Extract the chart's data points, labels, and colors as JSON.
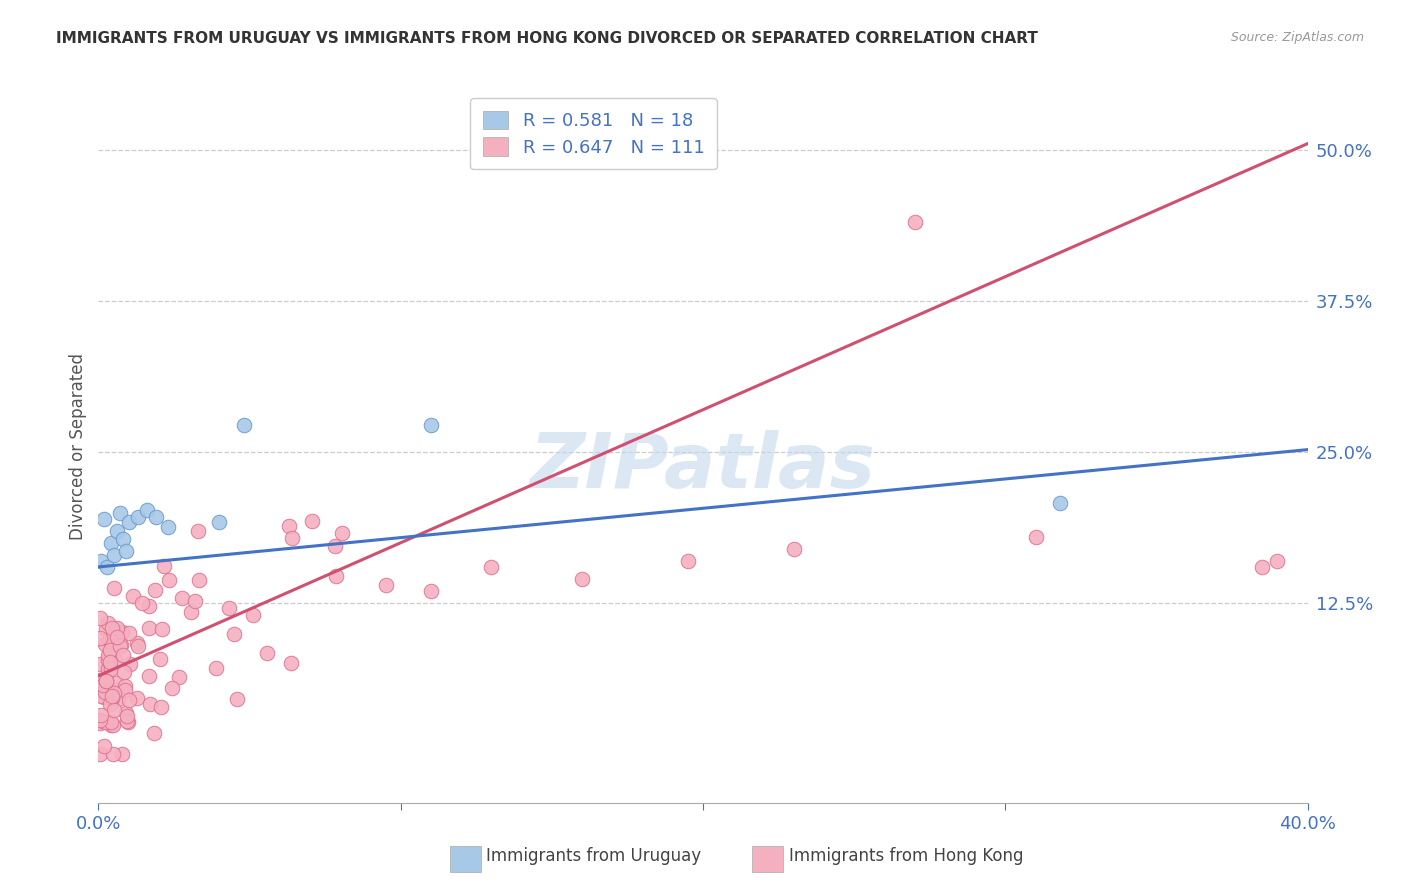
{
  "title": "IMMIGRANTS FROM URUGUAY VS IMMIGRANTS FROM HONG KONG DIVORCED OR SEPARATED CORRELATION CHART",
  "source": "Source: ZipAtlas.com",
  "ylabel": "Divorced or Separated",
  "xmin": 0.0,
  "xmax": 0.4,
  "ymin": -0.04,
  "ymax": 0.55,
  "y_ticks_right": [
    0.125,
    0.25,
    0.375,
    0.5
  ],
  "y_tick_labels_right": [
    "12.5%",
    "25.0%",
    "37.5%",
    "50.0%"
  ],
  "gridline_color": "#cccccc",
  "background_color": "#ffffff",
  "watermark": "ZIPatlas",
  "uruguay_color": "#a8c8e8",
  "uruguay_edge_color": "#6699cc",
  "uruguay_line_color": "#4472c4",
  "hk_color": "#f5b0c0",
  "hk_edge_color": "#dd7090",
  "hk_line_color": "#d05070",
  "uruguay_line_x": [
    0.0,
    0.4
  ],
  "uruguay_line_y": [
    0.155,
    0.252
  ],
  "hk_line_x": [
    0.0,
    0.4
  ],
  "hk_line_y": [
    0.065,
    0.505
  ],
  "legend_label_uruguay": "Immigrants from Uruguay",
  "legend_label_hk": "Immigrants from Hong Kong",
  "legend_text_uru": "R = 0.581   N = 18",
  "legend_text_hk": "R = 0.647   N = 111"
}
